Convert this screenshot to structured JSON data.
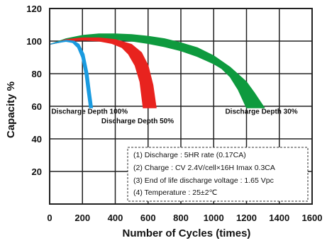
{
  "chart_data": {
    "type": "area",
    "xlabel": "Number of Cycles (times)",
    "ylabel": "Capacity %",
    "xlim": [
      0,
      1600
    ],
    "ylim": [
      0,
      120
    ],
    "x_ticks": [
      "0",
      "200",
      "400",
      "600",
      "800",
      "1000",
      "1200",
      "1400",
      "1600"
    ],
    "y_ticks": [
      "20",
      "40",
      "60",
      "80",
      "100",
      "120"
    ],
    "grid": true,
    "series": [
      {
        "name": "Discharge Depth 30%",
        "color": "#0e9a3e",
        "upper": [
          [
            0,
            98
          ],
          [
            100,
            101.5
          ],
          [
            200,
            103.5
          ],
          [
            300,
            104.5
          ],
          [
            400,
            104.5
          ],
          [
            500,
            104
          ],
          [
            600,
            103
          ],
          [
            700,
            101.5
          ],
          [
            800,
            99
          ],
          [
            900,
            96
          ],
          [
            1000,
            91
          ],
          [
            1100,
            84
          ],
          [
            1200,
            75
          ],
          [
            1250,
            68
          ],
          [
            1310,
            59
          ]
        ],
        "lower": [
          [
            0,
            98
          ],
          [
            100,
            100
          ],
          [
            200,
            101
          ],
          [
            300,
            101.5
          ],
          [
            400,
            101
          ],
          [
            500,
            100
          ],
          [
            600,
            98.5
          ],
          [
            700,
            96.5
          ],
          [
            800,
            94
          ],
          [
            900,
            90.5
          ],
          [
            1000,
            86
          ],
          [
            1050,
            83
          ],
          [
            1100,
            78
          ],
          [
            1150,
            70
          ],
          [
            1200,
            59
          ]
        ]
      },
      {
        "name": "Discharge Depth 50%",
        "color": "#e8231e",
        "upper": [
          [
            0,
            98
          ],
          [
            100,
            101
          ],
          [
            200,
            102
          ],
          [
            300,
            102
          ],
          [
            400,
            101
          ],
          [
            500,
            98
          ],
          [
            560,
            93
          ],
          [
            600,
            85
          ],
          [
            630,
            73
          ],
          [
            650,
            59
          ]
        ],
        "lower": [
          [
            0,
            98
          ],
          [
            100,
            100
          ],
          [
            200,
            100.5
          ],
          [
            300,
            100
          ],
          [
            380,
            98.5
          ],
          [
            440,
            96
          ],
          [
            480,
            92
          ],
          [
            520,
            85
          ],
          [
            550,
            75
          ],
          [
            570,
            59
          ]
        ]
      },
      {
        "name": "Discharge Depth 100%",
        "color": "#1a9be0",
        "upper": [
          [
            0,
            98
          ],
          [
            50,
            99.5
          ],
          [
            100,
            100.5
          ],
          [
            150,
            100
          ],
          [
            180,
            98
          ],
          [
            210,
            92
          ],
          [
            235,
            80
          ],
          [
            250,
            68
          ],
          [
            262,
            59
          ]
        ],
        "lower": [
          [
            0,
            98
          ],
          [
            50,
            99
          ],
          [
            100,
            99.8
          ],
          [
            140,
            99
          ],
          [
            170,
            96
          ],
          [
            195,
            90
          ],
          [
            215,
            80
          ],
          [
            230,
            68
          ],
          [
            242,
            59
          ]
        ]
      }
    ],
    "labels": [
      {
        "text": "Discharge Depth 100%",
        "x": 10,
        "y": 55.5
      },
      {
        "text": "Discharge Depth 50%",
        "x": 315,
        "y": 49.5
      },
      {
        "text": "Discharge Depth 30%",
        "x": 1070,
        "y": 55.5
      }
    ],
    "notes": [
      "(1) Discharge : 5HR rate (0.17CA)",
      "(2) Charge : CV 2.4V/cell×16H Imax 0.3CA",
      "(3) End of life discharge voltage : 1.65 Vpc",
      "(4) Temperature : 25±2℃"
    ]
  }
}
